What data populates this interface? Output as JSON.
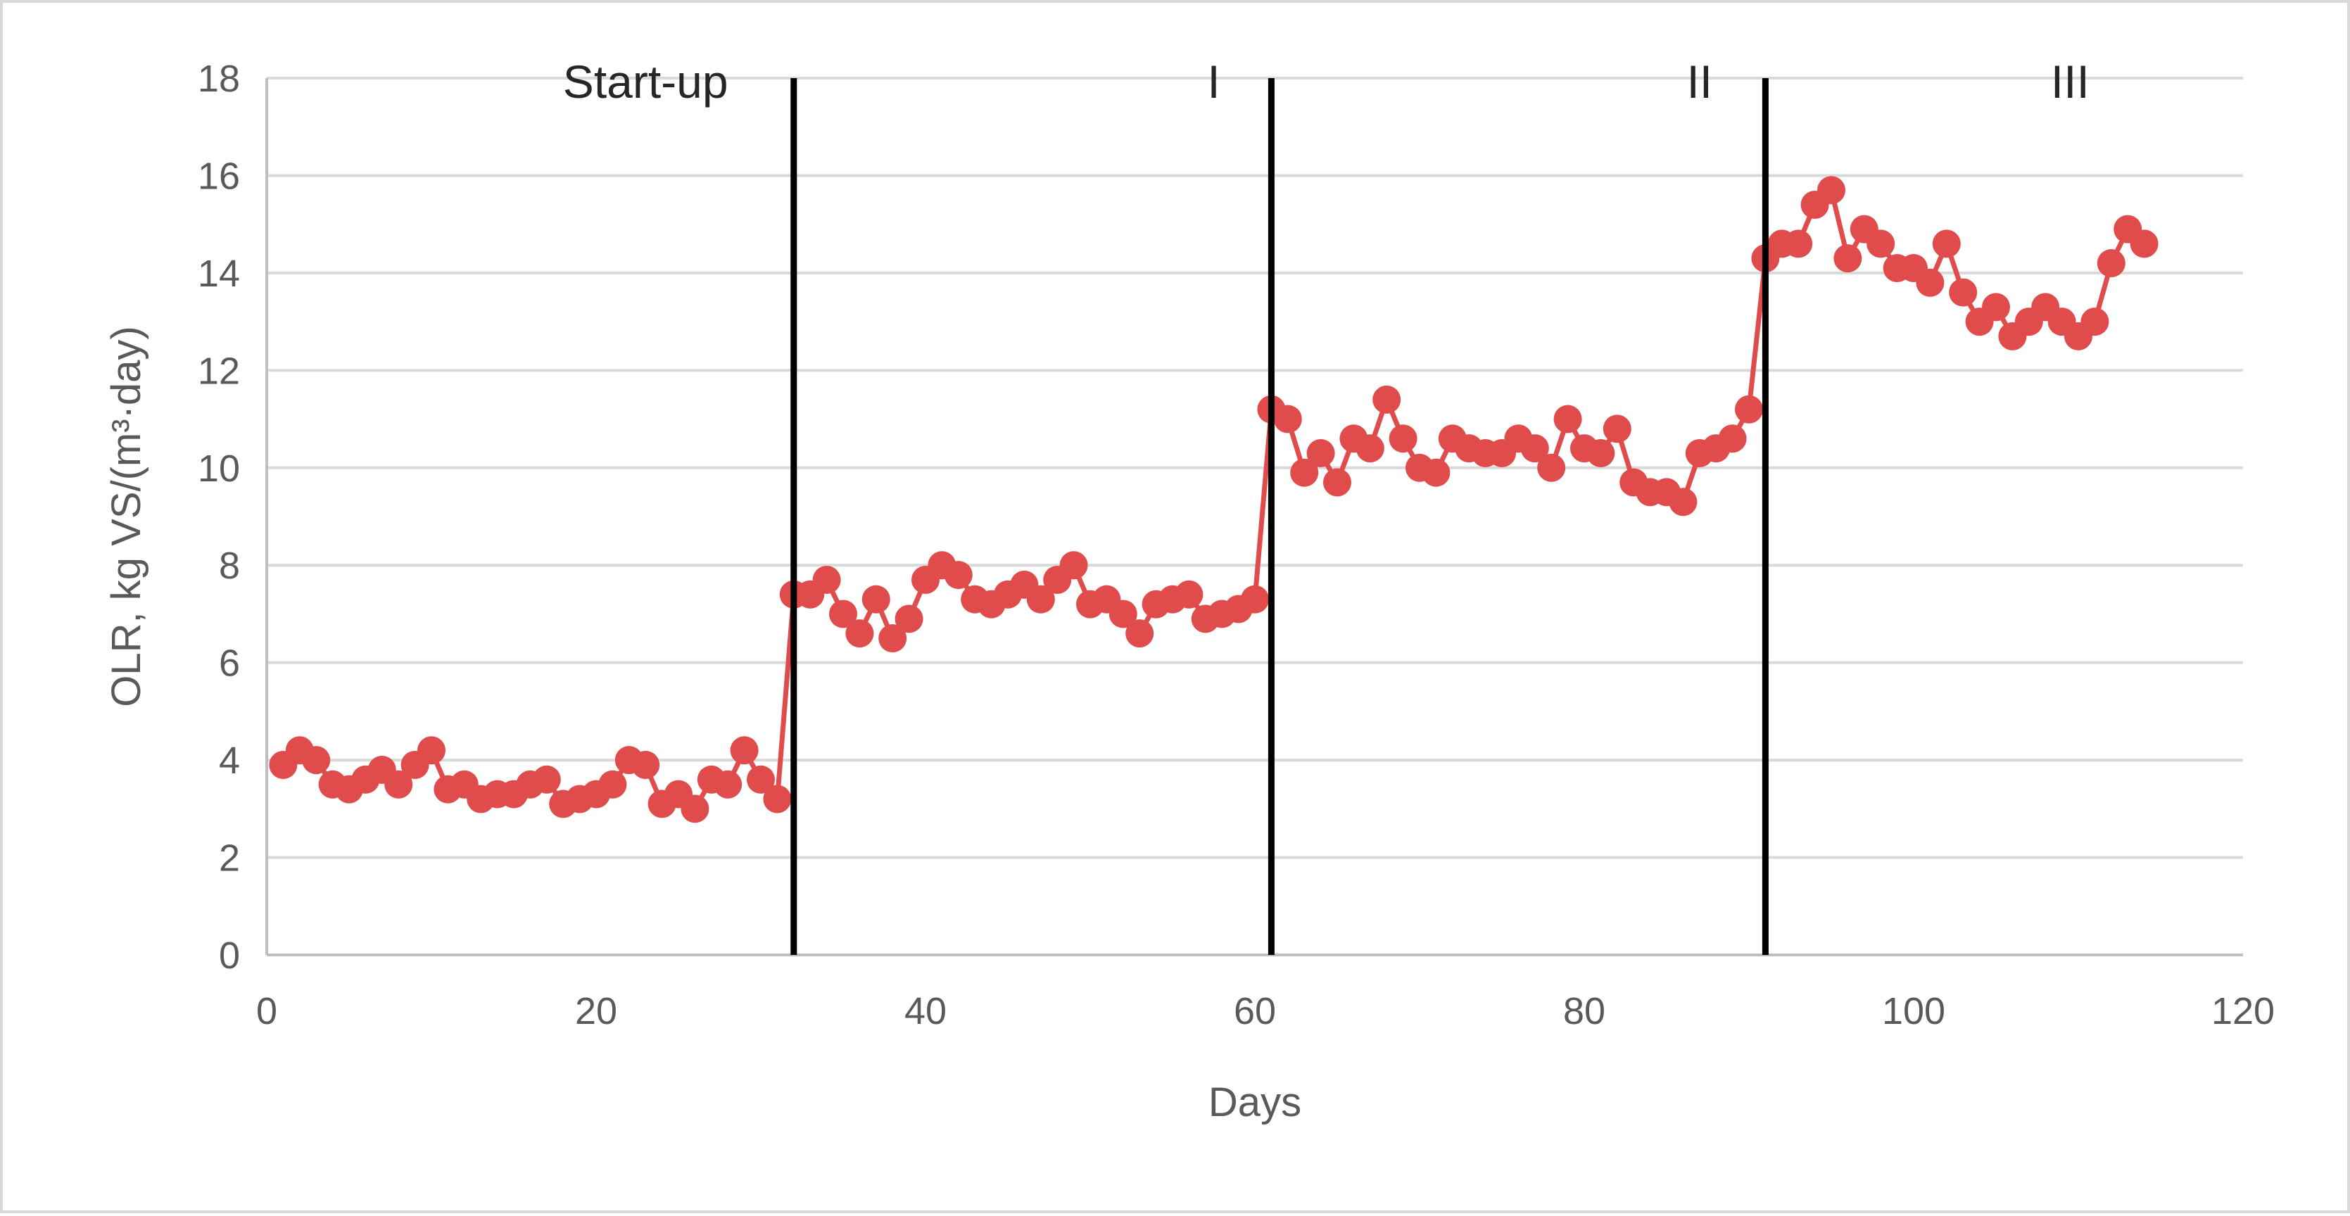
{
  "chart_data": {
    "type": "line",
    "xlabel": "Days",
    "ylabel": "OLR, kg VS/(m³·day)",
    "xlim": [
      0,
      120
    ],
    "ylim": [
      0,
      18
    ],
    "x_ticks": [
      0,
      20,
      40,
      60,
      80,
      100,
      120
    ],
    "y_ticks": [
      0,
      2,
      4,
      6,
      8,
      10,
      12,
      14,
      16,
      18
    ],
    "grid": "horizontal",
    "legend": "none",
    "colors": {
      "series": "#e04b4b",
      "divider": "#000000",
      "grid": "#d9d9d9",
      "axis": "#bfbfbf"
    },
    "phase_dividers": [
      32,
      61,
      91
    ],
    "phases": [
      {
        "label": "Start-up",
        "x": 23
      },
      {
        "label": "I",
        "x": 57.5
      },
      {
        "label": "II",
        "x": 87
      },
      {
        "label": "III",
        "x": 109.5
      }
    ],
    "series": [
      {
        "x": [
          1,
          2,
          3,
          4,
          5,
          6,
          7,
          8,
          9,
          10,
          11,
          12,
          13,
          14,
          15,
          16,
          17,
          18,
          19,
          20,
          21,
          22,
          23,
          24,
          25,
          26,
          27,
          28,
          29,
          30,
          31,
          32,
          33,
          34,
          35,
          36,
          37,
          38,
          39,
          40,
          41,
          42,
          43,
          44,
          45,
          46,
          47,
          48,
          49,
          50,
          51,
          52,
          53,
          54,
          55,
          56,
          57,
          58,
          59,
          60,
          61,
          62,
          63,
          64,
          65,
          66,
          67,
          68,
          69,
          70,
          71,
          72,
          73,
          74,
          75,
          76,
          77,
          78,
          79,
          80,
          81,
          82,
          83,
          84,
          85,
          86,
          87,
          88,
          89,
          90,
          91,
          92,
          93,
          94,
          95,
          96,
          97,
          98,
          99,
          100,
          101,
          102,
          103,
          104,
          105,
          106,
          107,
          108,
          109,
          110,
          111,
          112,
          113,
          114
        ],
        "y": [
          3.9,
          4.2,
          4.0,
          3.5,
          3.4,
          3.6,
          3.8,
          3.5,
          3.9,
          4.2,
          3.4,
          3.5,
          3.2,
          3.3,
          3.3,
          3.5,
          3.6,
          3.1,
          3.2,
          3.3,
          3.5,
          4.0,
          3.9,
          3.1,
          3.3,
          3.0,
          3.6,
          3.5,
          4.2,
          3.6,
          3.2,
          7.4,
          7.4,
          7.7,
          7.0,
          6.6,
          7.3,
          6.5,
          6.9,
          7.7,
          8.0,
          7.8,
          7.3,
          7.2,
          7.4,
          7.6,
          7.3,
          7.7,
          8.0,
          7.2,
          7.3,
          7.0,
          6.6,
          7.2,
          7.3,
          7.4,
          6.9,
          7.0,
          7.1,
          7.3,
          11.2,
          11.0,
          9.9,
          10.3,
          9.7,
          10.6,
          10.4,
          11.4,
          10.6,
          10.0,
          9.9,
          10.6,
          10.4,
          10.3,
          10.3,
          10.6,
          10.4,
          10.0,
          11.0,
          10.4,
          10.3,
          10.8,
          9.7,
          9.5,
          9.5,
          9.3,
          10.3,
          10.4,
          10.6,
          11.2,
          14.3,
          14.6,
          14.6,
          15.4,
          15.7,
          14.3,
          14.9,
          14.6,
          14.1,
          14.1,
          13.8,
          14.6,
          13.6,
          13.0,
          13.3,
          12.7,
          13.0,
          13.3,
          13.0,
          12.7,
          13.0,
          14.2,
          14.9,
          14.6
        ]
      }
    ]
  }
}
